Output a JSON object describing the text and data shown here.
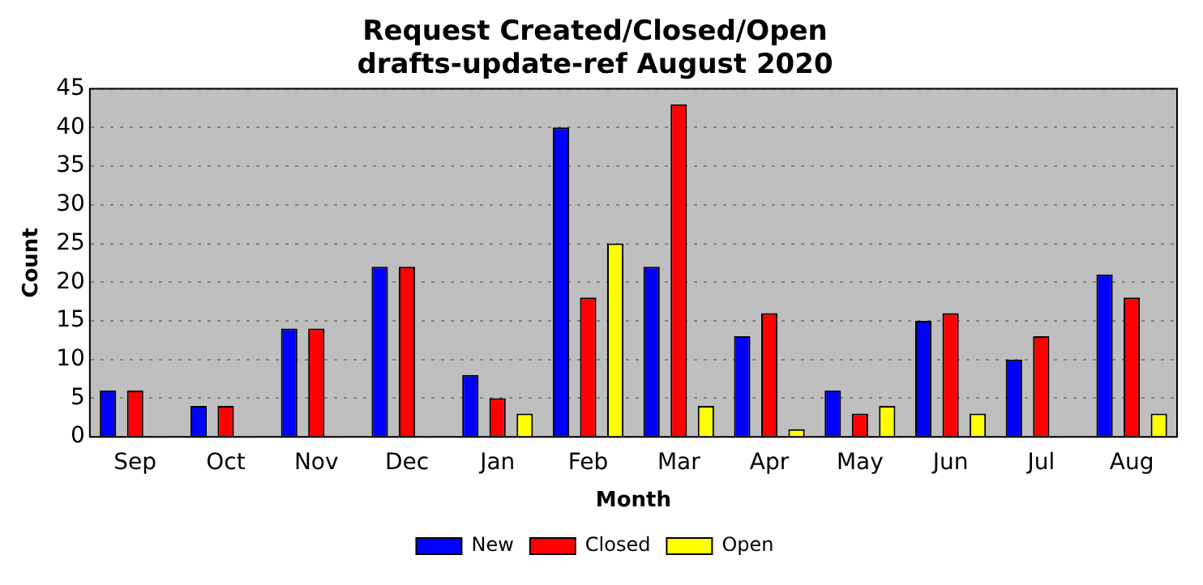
{
  "chart_data": {
    "type": "bar",
    "title": "Request Created/Closed/Open",
    "subtitle": "drafts-update-ref August 2020",
    "xlabel": "Month",
    "ylabel": "Count",
    "categories": [
      "Sep",
      "Oct",
      "Nov",
      "Dec",
      "Jan",
      "Feb",
      "Mar",
      "Apr",
      "May",
      "Jun",
      "Jul",
      "Aug"
    ],
    "series": [
      {
        "name": "New",
        "color": "#0000ff",
        "values": [
          6,
          4,
          14,
          22,
          8,
          40,
          22,
          13,
          6,
          15,
          10,
          21
        ]
      },
      {
        "name": "Closed",
        "color": "#ff0000",
        "values": [
          6,
          4,
          14,
          22,
          5,
          18,
          43,
          16,
          3,
          16,
          13,
          18
        ]
      },
      {
        "name": "Open",
        "color": "#ffff00",
        "values": [
          0,
          0,
          0,
          0,
          3,
          25,
          4,
          1,
          4,
          3,
          0,
          3
        ]
      }
    ],
    "ylim": [
      0,
      45
    ],
    "yticks": [
      0,
      5,
      10,
      15,
      20,
      25,
      30,
      35,
      40,
      45
    ],
    "grid": "y",
    "legend": "bottom"
  }
}
